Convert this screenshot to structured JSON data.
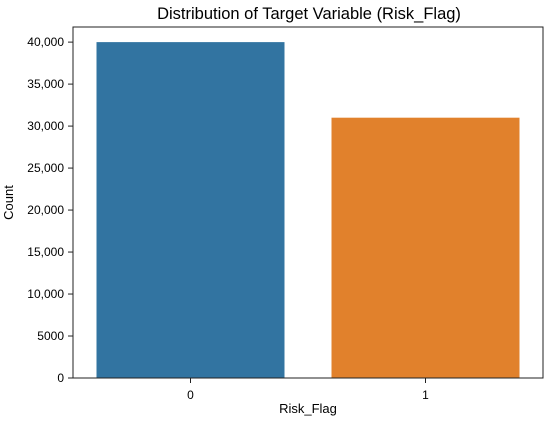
{
  "chart_data": {
    "type": "bar",
    "title": "Distribution of Target Variable (Risk_Flag)",
    "xlabel": "Risk_Flag",
    "ylabel": "Count",
    "categories": [
      "0",
      "1"
    ],
    "values": [
      40000,
      31000
    ],
    "ylim": [
      0,
      41800
    ],
    "yticks": [
      0,
      5000,
      10000,
      15000,
      20000,
      25000,
      30000,
      35000,
      40000
    ],
    "ytick_labels": [
      "0",
      "5000",
      "10,000",
      "15,000",
      "20,000",
      "25,000",
      "30,000",
      "35,000",
      "40,000"
    ],
    "colors": [
      "#3274a1",
      "#e1812c"
    ],
    "grid": false,
    "legend": "none"
  }
}
